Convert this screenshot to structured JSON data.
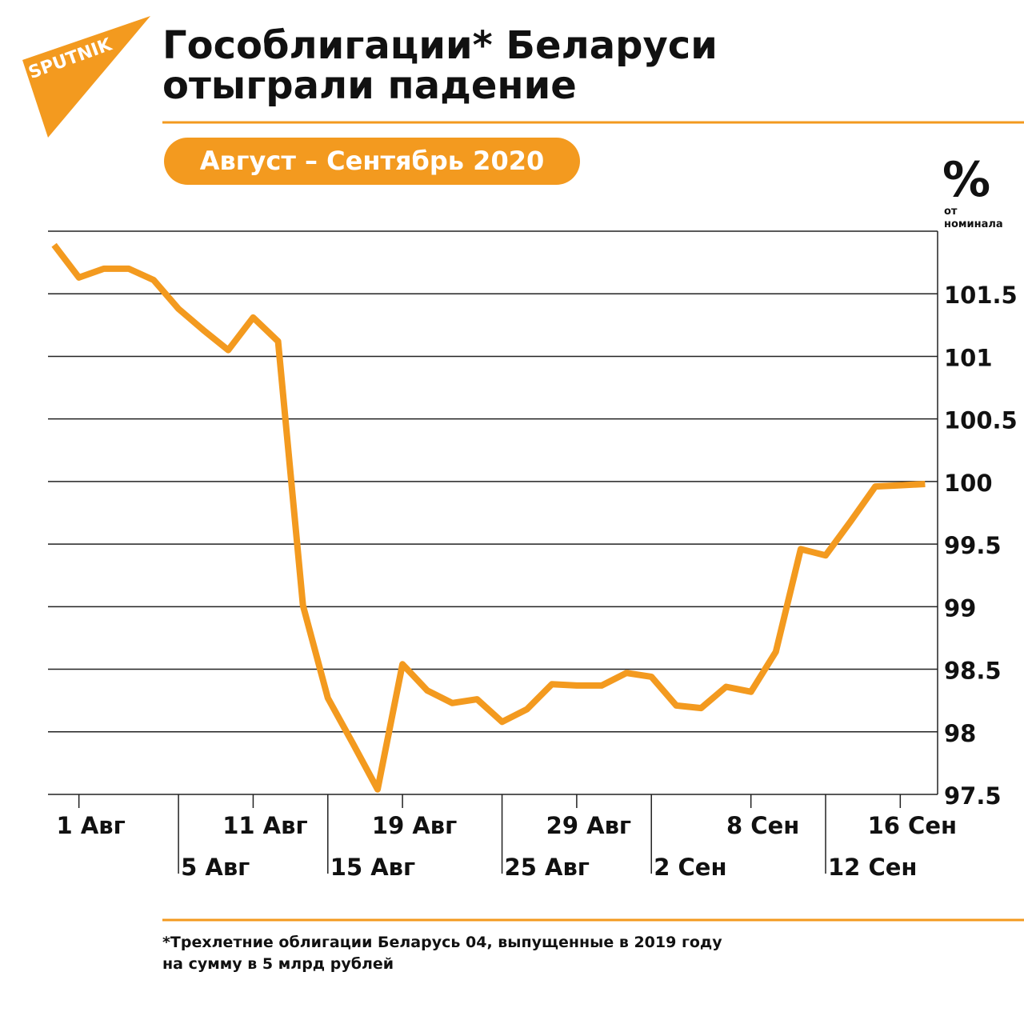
{
  "logo": "SPUTNIK",
  "chart_data": {
    "type": "line",
    "title": [
      "Гособлигации* Беларуси",
      "отыграли падение"
    ],
    "subtitle": "Август – Сентябрь 2020",
    "y_unit": "%",
    "y_unit_note": [
      "от",
      "номинала"
    ],
    "categories": [
      null,
      "1 Авг",
      null,
      null,
      null,
      "5 Авг",
      null,
      null,
      "11 Авг",
      null,
      null,
      "15 Авг",
      null,
      null,
      "19 Авг",
      null,
      null,
      null,
      "25 Авг",
      null,
      null,
      "29 Авг",
      null,
      null,
      "2 Сен",
      null,
      null,
      null,
      "8 Сен",
      null,
      null,
      "12 Сен",
      null,
      null,
      "16 Сен",
      null
    ],
    "values": [
      101.89,
      101.63,
      101.7,
      101.7,
      101.61,
      101.38,
      101.21,
      101.05,
      101.31,
      101.12,
      99.01,
      98.27,
      97.91,
      97.54,
      98.54,
      98.33,
      98.23,
      98.26,
      98.08,
      98.18,
      98.38,
      98.37,
      98.37,
      98.47,
      98.44,
      98.21,
      98.19,
      98.36,
      98.32,
      98.64,
      99.46,
      99.41,
      99.68,
      99.96,
      99.97,
      99.98
    ],
    "color": "#f39a1f",
    "ylim": [
      97.5,
      102
    ],
    "yticks": [
      97.5,
      98,
      98.5,
      99,
      99.5,
      100,
      100.5,
      101,
      101.5
    ],
    "grid": true,
    "footnote": [
      "*Трехлетние облигации Беларусь 04, выпущенные в 2019 году",
      "на сумму в 5 млрд рублей"
    ]
  }
}
